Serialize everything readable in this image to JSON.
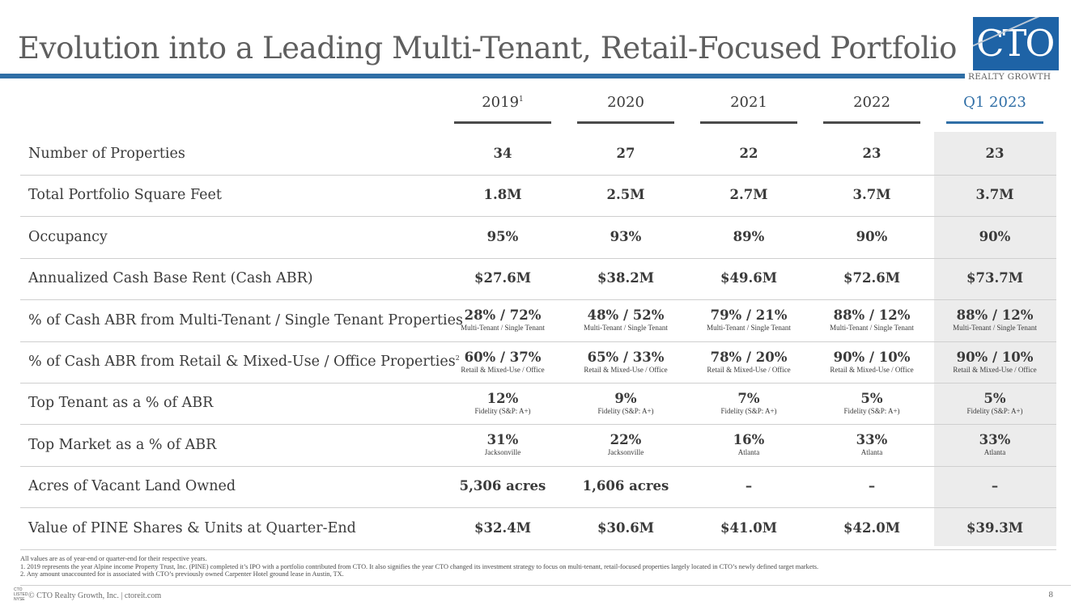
{
  "slide": {
    "title": "Evolution into a Leading Multi-Tenant, Retail-Focused Portfolio",
    "page_number": "8"
  },
  "logo": {
    "main": "CTO",
    "sub": "REALTY GROWTH"
  },
  "years": [
    {
      "label": "2019",
      "footnote": "1"
    },
    {
      "label": "2020",
      "footnote": ""
    },
    {
      "label": "2021",
      "footnote": ""
    },
    {
      "label": "2022",
      "footnote": ""
    },
    {
      "label": "Q1 2023",
      "footnote": ""
    }
  ],
  "rows": [
    {
      "label": "Number of Properties",
      "footnote": "",
      "cells": [
        {
          "value": "34"
        },
        {
          "value": "27"
        },
        {
          "value": "22"
        },
        {
          "value": "23"
        },
        {
          "value": "23"
        }
      ]
    },
    {
      "label": "Total Portfolio Square Feet",
      "footnote": "",
      "cells": [
        {
          "value": "1.8M"
        },
        {
          "value": "2.5M"
        },
        {
          "value": "2.7M"
        },
        {
          "value": "3.7M"
        },
        {
          "value": "3.7M"
        }
      ]
    },
    {
      "label": "Occupancy",
      "footnote": "",
      "cells": [
        {
          "value": "95%"
        },
        {
          "value": "93%"
        },
        {
          "value": "89%"
        },
        {
          "value": "90%"
        },
        {
          "value": "90%"
        }
      ]
    },
    {
      "label": "Annualized Cash Base Rent (Cash ABR)",
      "footnote": "",
      "cells": [
        {
          "value": "$27.6M"
        },
        {
          "value": "$38.2M"
        },
        {
          "value": "$49.6M"
        },
        {
          "value": "$72.6M"
        },
        {
          "value": "$73.7M"
        }
      ]
    },
    {
      "label": "% of Cash ABR from Multi-Tenant / Single Tenant Properties",
      "footnote": "",
      "cells": [
        {
          "value": "28% / 72%",
          "sub": "Multi-Tenant / Single Tenant"
        },
        {
          "value": "48% / 52%",
          "sub": "Multi-Tenant / Single Tenant"
        },
        {
          "value": "79% / 21%",
          "sub": "Multi-Tenant / Single Tenant"
        },
        {
          "value": "88% / 12%",
          "sub": "Multi-Tenant / Single Tenant"
        },
        {
          "value": "88% / 12%",
          "sub": "Multi-Tenant / Single Tenant"
        }
      ]
    },
    {
      "label": "% of Cash ABR from Retail & Mixed-Use / Office Properties",
      "footnote": "2",
      "cells": [
        {
          "value": "60% / 37%",
          "sub": "Retail & Mixed-Use / Office"
        },
        {
          "value": "65% / 33%",
          "sub": "Retail & Mixed-Use / Office"
        },
        {
          "value": "78% / 20%",
          "sub": "Retail & Mixed-Use / Office"
        },
        {
          "value": "90% / 10%",
          "sub": "Retail & Mixed-Use / Office"
        },
        {
          "value": "90% / 10%",
          "sub": "Retail & Mixed-Use / Office"
        }
      ]
    },
    {
      "label": "Top Tenant as a % of ABR",
      "footnote": "",
      "cells": [
        {
          "value": "12%",
          "sub": "Fidelity (S&P: A+)"
        },
        {
          "value": "9%",
          "sub": "Fidelity (S&P: A+)"
        },
        {
          "value": "7%",
          "sub": "Fidelity (S&P: A+)"
        },
        {
          "value": "5%",
          "sub": "Fidelity (S&P: A+)"
        },
        {
          "value": "5%",
          "sub": "Fidelity (S&P: A+)"
        }
      ]
    },
    {
      "label": "Top Market as a % of ABR",
      "footnote": "",
      "cells": [
        {
          "value": "31%",
          "sub": "Jacksonville"
        },
        {
          "value": "22%",
          "sub": "Jacksonville"
        },
        {
          "value": "16%",
          "sub": "Atlanta"
        },
        {
          "value": "33%",
          "sub": "Atlanta"
        },
        {
          "value": "33%",
          "sub": "Atlanta"
        }
      ]
    },
    {
      "label": "Acres of Vacant Land Owned",
      "footnote": "",
      "cells": [
        {
          "value": "5,306 acres"
        },
        {
          "value": "1,606 acres"
        },
        {
          "value": "–"
        },
        {
          "value": "–"
        },
        {
          "value": "–"
        }
      ]
    },
    {
      "label": "Value of PINE Shares & Units at Quarter-End",
      "footnote": "",
      "cells": [
        {
          "value": "$32.4M"
        },
        {
          "value": "$30.6M"
        },
        {
          "value": "$41.0M"
        },
        {
          "value": "$42.0M"
        },
        {
          "value": "$39.3M"
        }
      ]
    }
  ],
  "notes": [
    "All values are as of year-end or quarter-end for their respective years.",
    "1.    2019 represents the year Alpine income Property Trust, Inc. (PINE) completed it’s IPO with a portfolio contributed from CTO.  It also signifies the year CTO changed its investment strategy to focus on multi-tenant, retail-focused properties largely located in CTO’s newly defined target markets.",
    "2.    Any amount unaccounted for is associated with CTO’s previously owned Carpenter Hotel ground lease in Austin, TX."
  ],
  "footer": {
    "logo_lines": [
      "CTO",
      "LISTED",
      "NYSE"
    ],
    "text": "© CTO Realty Growth, Inc. | ctoreit.com"
  },
  "colors": {
    "accent": "#2f6ea6",
    "logo_bg": "#1e63a6",
    "highlight": "#ececec"
  }
}
